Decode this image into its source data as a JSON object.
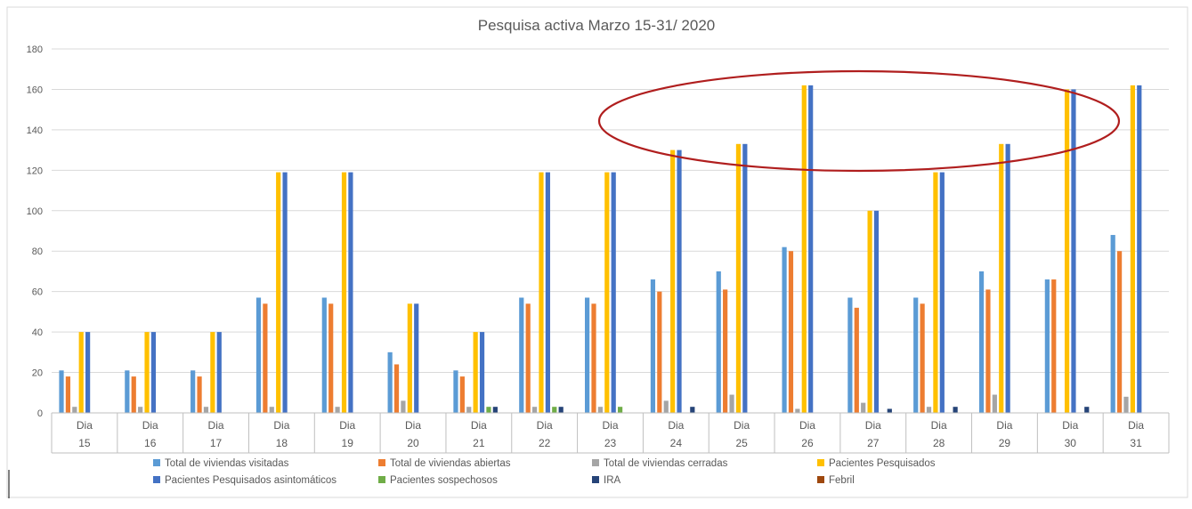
{
  "chart_data": {
    "type": "bar",
    "title": "Pesquisa activa Marzo 15-31/ 2020",
    "xlabel": "",
    "ylabel": "",
    "ylim": [
      0,
      180
    ],
    "yticks": [
      0,
      20,
      40,
      60,
      80,
      100,
      120,
      140,
      160,
      180
    ],
    "grid": true,
    "legend_position": "bottom",
    "categories": [
      {
        "top": "Dia",
        "bottom": "15"
      },
      {
        "top": "Dia",
        "bottom": "16"
      },
      {
        "top": "Dia",
        "bottom": "17"
      },
      {
        "top": "Dia",
        "bottom": "18"
      },
      {
        "top": "Dia",
        "bottom": "19"
      },
      {
        "top": "Dia",
        "bottom": "20"
      },
      {
        "top": "Dia",
        "bottom": "21"
      },
      {
        "top": "Dia",
        "bottom": "22"
      },
      {
        "top": "Dia",
        "bottom": "23"
      },
      {
        "top": "Dia",
        "bottom": "24"
      },
      {
        "top": "Dia",
        "bottom": "25"
      },
      {
        "top": "Dia",
        "bottom": "26"
      },
      {
        "top": "Dia",
        "bottom": "27"
      },
      {
        "top": "Dia",
        "bottom": "28"
      },
      {
        "top": "Dia",
        "bottom": "29"
      },
      {
        "top": "Dia",
        "bottom": "30"
      },
      {
        "top": "Dia",
        "bottom": "31"
      }
    ],
    "series": [
      {
        "name": "Total de viviendas visitadas",
        "color": "#5b9bd5",
        "values": [
          21,
          21,
          21,
          57,
          57,
          30,
          21,
          57,
          57,
          66,
          70,
          82,
          57,
          57,
          70,
          66,
          88
        ]
      },
      {
        "name": "Total de viviendas abiertas",
        "color": "#ed7d31",
        "values": [
          18,
          18,
          18,
          54,
          54,
          24,
          18,
          54,
          54,
          60,
          61,
          80,
          52,
          54,
          61,
          66,
          80
        ]
      },
      {
        "name": "Total de viviendas cerradas",
        "color": "#a5a5a5",
        "values": [
          3,
          3,
          3,
          3,
          3,
          6,
          3,
          3,
          3,
          6,
          9,
          2,
          5,
          3,
          9,
          0,
          8
        ]
      },
      {
        "name": "Pacientes Pesquisados",
        "color": "#ffc000",
        "values": [
          40,
          40,
          40,
          119,
          119,
          54,
          40,
          119,
          119,
          130,
          133,
          162,
          100,
          119,
          133,
          160,
          162
        ]
      },
      {
        "name": "Pacientes Pesquisados asintomáticos",
        "color": "#4472c4",
        "values": [
          40,
          40,
          40,
          119,
          119,
          54,
          40,
          119,
          119,
          130,
          133,
          162,
          100,
          119,
          133,
          160,
          162
        ]
      },
      {
        "name": "Pacientes sospechosos",
        "color": "#70ad47",
        "values": [
          0,
          0,
          0,
          0,
          0,
          0,
          3,
          3,
          3,
          0,
          0,
          0,
          0,
          0,
          0,
          0,
          0
        ]
      },
      {
        "name": "IRA",
        "color": "#264478",
        "values": [
          0,
          0,
          0,
          0,
          0,
          0,
          3,
          3,
          0,
          3,
          0,
          0,
          2,
          3,
          0,
          3,
          0
        ]
      },
      {
        "name": "Febril",
        "color": "#9e480e",
        "values": [
          0,
          0,
          0,
          0,
          0,
          0,
          0,
          0,
          0,
          0,
          0,
          0,
          0,
          0,
          0,
          0,
          0
        ]
      }
    ],
    "annotation": {
      "shape": "ellipse",
      "color": "#b01e1e",
      "highlights_categories": [
        "24",
        "25",
        "26",
        "27",
        "28",
        "29",
        "30"
      ]
    }
  }
}
